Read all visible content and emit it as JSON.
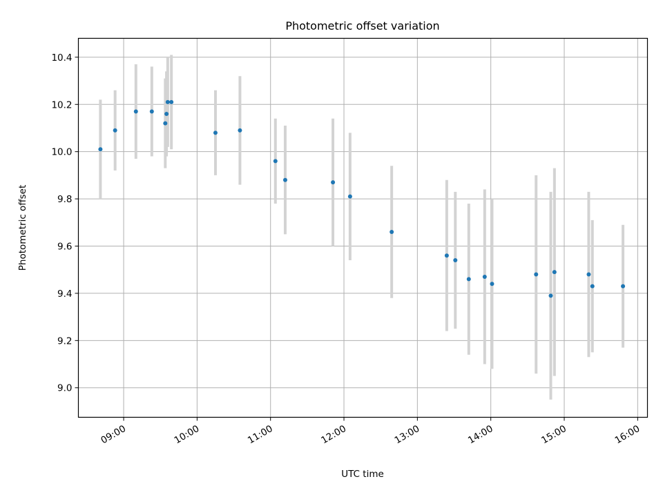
{
  "chart_data": {
    "type": "scatter",
    "title": "Photometric offset variation",
    "xlabel": "UTC time",
    "ylabel": "Photometric offset",
    "xlim": [
      "08:23",
      "16:08"
    ],
    "ylim": [
      8.875,
      10.48
    ],
    "grid": true,
    "x_ticks": [
      "09:00",
      "10:00",
      "11:00",
      "12:00",
      "13:00",
      "14:00",
      "15:00",
      "16:00"
    ],
    "y_ticks": [
      "9.0",
      "9.2",
      "9.4",
      "9.6",
      "9.8",
      "10.0",
      "10.2",
      "10.4"
    ],
    "colors": {
      "point": "#1f77b4",
      "errorbar": "#d3d3d3",
      "grid": "#b0b0b0"
    },
    "series": [
      {
        "points": [
          {
            "t": "08:41",
            "y": 10.01,
            "err": 0.21
          },
          {
            "t": "08:53",
            "y": 10.09,
            "err": 0.17
          },
          {
            "t": "09:10",
            "y": 10.17,
            "err": 0.2
          },
          {
            "t": "09:23",
            "y": 10.17,
            "err": 0.19
          },
          {
            "t": "09:34",
            "y": 10.12,
            "err": 0.19
          },
          {
            "t": "09:35",
            "y": 10.16,
            "err": 0.18
          },
          {
            "t": "09:36",
            "y": 10.21,
            "err": 0.19
          },
          {
            "t": "09:39",
            "y": 10.21,
            "err": 0.2
          },
          {
            "t": "10:15",
            "y": 10.08,
            "err": 0.18
          },
          {
            "t": "10:35",
            "y": 10.09,
            "err": 0.23
          },
          {
            "t": "11:04",
            "y": 9.96,
            "err": 0.18
          },
          {
            "t": "11:12",
            "y": 9.88,
            "err": 0.23
          },
          {
            "t": "11:51",
            "y": 9.87,
            "err": 0.27
          },
          {
            "t": "12:05",
            "y": 9.81,
            "err": 0.27
          },
          {
            "t": "12:39",
            "y": 9.66,
            "err": 0.28
          },
          {
            "t": "13:24",
            "y": 9.56,
            "err": 0.32
          },
          {
            "t": "13:31",
            "y": 9.54,
            "err": 0.29
          },
          {
            "t": "13:42",
            "y": 9.46,
            "err": 0.32
          },
          {
            "t": "13:55",
            "y": 9.47,
            "err": 0.37
          },
          {
            "t": "14:01",
            "y": 9.44,
            "err": 0.36
          },
          {
            "t": "14:37",
            "y": 9.48,
            "err": 0.42
          },
          {
            "t": "14:49",
            "y": 9.39,
            "err": 0.44
          },
          {
            "t": "14:52",
            "y": 9.49,
            "err": 0.44
          },
          {
            "t": "15:20",
            "y": 9.48,
            "err": 0.35
          },
          {
            "t": "15:23",
            "y": 9.43,
            "err": 0.28
          },
          {
            "t": "15:48",
            "y": 9.43,
            "err": 0.26
          }
        ]
      }
    ]
  }
}
